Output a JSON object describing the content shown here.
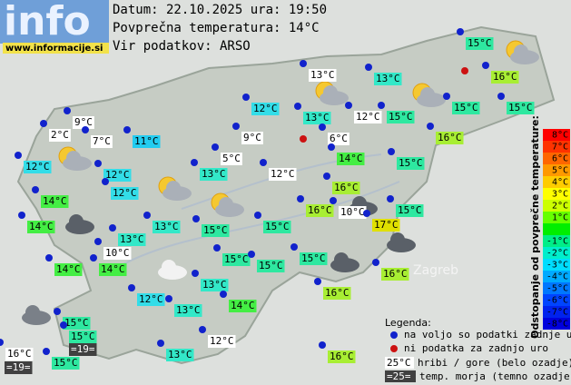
{
  "header": {
    "logo": "info",
    "site": "www.informacije.si",
    "date": "Datum: 22.10.2025 ura: 19:50",
    "avg": "Povprečna temperatura: 14°C",
    "source": "Vir podatkov: ARSO"
  },
  "map": {
    "city": "Zagreb"
  },
  "stations": [
    {
      "label": "15°C",
      "color": "#2ee8a0"
    },
    {
      "label": "16°C",
      "color": "#a8ee33"
    },
    {
      "label": "13°C",
      "color": "#33e8c8"
    },
    {
      "label": "13°C",
      "color": "#ffffff"
    },
    {
      "label": "12°C",
      "color": "#33dde8"
    },
    {
      "label": "13°C",
      "color": "#33e8c8"
    },
    {
      "label": "12°C",
      "color": "#ffffff"
    },
    {
      "label": "15°C",
      "color": "#2ee8a0"
    },
    {
      "label": "15°C",
      "color": "#2ee8a0"
    },
    {
      "label": "15°C",
      "color": "#2ee8a0"
    },
    {
      "label": "9°C",
      "color": "#ffffff"
    },
    {
      "label": "2°C",
      "color": "#ffffff"
    },
    {
      "label": "7°C",
      "color": "#ffffff"
    },
    {
      "label": "11°C",
      "color": "#22ccf0"
    },
    {
      "label": "9°C",
      "color": "#ffffff"
    },
    {
      "label": "6°C",
      "color": "#ffffff"
    },
    {
      "label": "16°C",
      "color": "#a8ee33"
    },
    {
      "label": "12°C",
      "color": "#33dde8"
    },
    {
      "label": "5°C",
      "color": "#ffffff"
    },
    {
      "label": "14°C",
      "color": "#44ee44"
    },
    {
      "label": "15°C",
      "color": "#2ee8a0"
    },
    {
      "label": "12°C",
      "color": "#33dde8"
    },
    {
      "label": "13°C",
      "color": "#33e8c8"
    },
    {
      "label": "12°C",
      "color": "#ffffff"
    },
    {
      "label": "16°C",
      "color": "#a8ee33"
    },
    {
      "label": "12°C",
      "color": "#33dde8"
    },
    {
      "label": "14°C",
      "color": "#44ee44"
    },
    {
      "label": "15°C",
      "color": "#2ee8a0"
    },
    {
      "label": "16°C",
      "color": "#a8ee33"
    },
    {
      "label": "10°C",
      "color": "#ffffff"
    },
    {
      "label": "17°C",
      "color": "#e0e000"
    },
    {
      "label": "14°C",
      "color": "#44ee44"
    },
    {
      "label": "13°C",
      "color": "#33e8c8"
    },
    {
      "label": "15°C",
      "color": "#2ee8a0"
    },
    {
      "label": "15°C",
      "color": "#2ee8a0"
    },
    {
      "label": "13°C",
      "color": "#33e8c8"
    },
    {
      "label": "10°C",
      "color": "#ffffff"
    },
    {
      "label": "15°C",
      "color": "#2ee8a0"
    },
    {
      "label": "15°C",
      "color": "#2ee8a0"
    },
    {
      "label": "14°C",
      "color": "#44ee44"
    },
    {
      "label": "14°C",
      "color": "#44ee44"
    },
    {
      "label": "15°C",
      "color": "#2ee8a0"
    },
    {
      "label": "16°C",
      "color": "#a8ee33"
    },
    {
      "label": "13°C",
      "color": "#33e8c8"
    },
    {
      "label": "16°C",
      "color": "#a8ee33"
    },
    {
      "label": "12°C",
      "color": "#33dde8"
    },
    {
      "label": "13°C",
      "color": "#33e8c8"
    },
    {
      "label": "14°C",
      "color": "#44ee44"
    },
    {
      "label": "15°C",
      "color": "#2ee8a0"
    },
    {
      "label": "15°C",
      "color": "#2ee8a0"
    },
    {
      "label": "12°C",
      "color": "#ffffff"
    },
    {
      "label": "13°C",
      "color": "#33e8c8"
    },
    {
      "label": "16°C",
      "color": "#a8ee33"
    },
    {
      "label": "16°C",
      "color": "#ffffff"
    },
    {
      "label": "15°C",
      "color": "#2ee8a0"
    },
    {
      "label": "=19=",
      "color": "#404040",
      "text_color": "#ffffff"
    },
    {
      "label": "=19=",
      "color": "#404040",
      "text_color": "#ffffff"
    }
  ],
  "scale": {
    "title": "Odstopanje od povprečne temperature:",
    "labels": [
      "8°C",
      "7°C",
      "6°C",
      "5°C",
      "4°C",
      "3°C",
      "2°C",
      "1°C",
      null,
      "-1°C",
      "-2°C",
      "-3°C",
      "-4°C",
      "-5°C",
      "-6°C",
      "-7°C",
      "-8°C"
    ],
    "colors": [
      "#ff0000",
      "#ff3300",
      "#ff6600",
      "#ff9900",
      "#ffcc00",
      "#ffff00",
      "#ccff00",
      "#66ff00",
      "#00ee00",
      "#00ee88",
      "#00eecc",
      "#00ddff",
      "#00aaff",
      "#0077ff",
      "#0044ff",
      "#0022ee",
      "#0000dd"
    ]
  },
  "legend": {
    "title": "Legenda:",
    "available": "na voljo so podatki zadnje ure",
    "missing": "ni podatka za zadnjo uro",
    "mountain_sample": "25°C",
    "mountain": "hribi / gore (belo ozadje)",
    "sea_sample": "=25=",
    "sea": "temp. morja (temno ozadje)"
  }
}
